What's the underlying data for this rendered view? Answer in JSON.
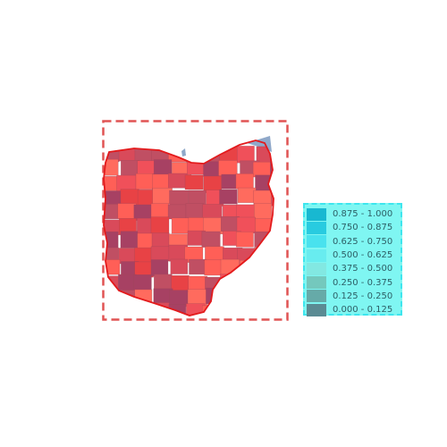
{
  "map": {
    "colors": {
      "frame": "#e05353",
      "state_outline": "#e31a1c",
      "water": "#8fa8c9",
      "county_shades": [
        "#ff5f57",
        "#f0505a",
        "#d94a5a",
        "#c04f63",
        "#ff6b5e",
        "#e84245",
        "#a74163"
      ]
    }
  },
  "legend": {
    "items": [
      {
        "label": "0.875 - 1.000",
        "color": "#18b8d1"
      },
      {
        "label": "0.750 - 0.875",
        "color": "#28cbe0"
      },
      {
        "label": "0.625 - 0.750",
        "color": "#49e2ee"
      },
      {
        "label": "0.500 - 0.625",
        "color": "#68ecef"
      },
      {
        "label": "0.375 - 0.500",
        "color": "#82e8e2"
      },
      {
        "label": "0.250 - 0.375",
        "color": "#74c8bd"
      },
      {
        "label": "0.125 - 0.250",
        "color": "#66aaa8"
      },
      {
        "label": "0.000 - 0.125",
        "color": "#5b8b93"
      }
    ]
  }
}
